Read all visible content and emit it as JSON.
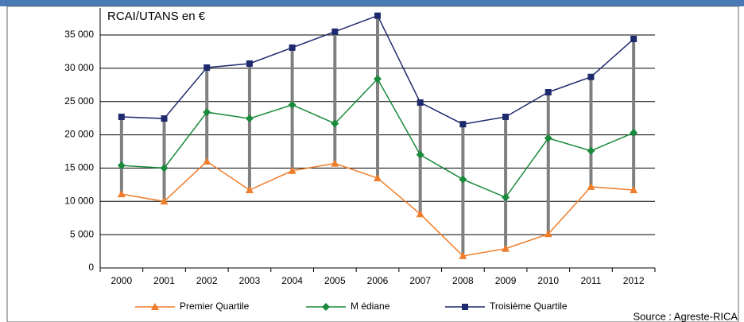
{
  "chart_data": {
    "type": "line",
    "title": "RCAI/UTANS en €",
    "categories": [
      "2000",
      "2001",
      "2002",
      "2003",
      "2004",
      "2005",
      "2006",
      "2007",
      "2008",
      "2009",
      "2010",
      "2011",
      "2012"
    ],
    "series": [
      {
        "name": "Premier Quartile",
        "color": "#f07d2b",
        "marker": "triangle",
        "values": [
          11100,
          10000,
          16000,
          11700,
          14600,
          15700,
          13500,
          8100,
          1800,
          2900,
          5100,
          12200,
          11700
        ]
      },
      {
        "name": "M édiane",
        "color": "#1a8a3c",
        "marker": "diamond",
        "values": [
          15400,
          15000,
          23400,
          22450,
          24500,
          21700,
          28400,
          17000,
          13300,
          10600,
          19500,
          17600,
          20300
        ]
      },
      {
        "name": "Troisième Quartile",
        "color": "#1f2a6e",
        "marker": "square",
        "values": [
          22700,
          22450,
          30100,
          30700,
          33100,
          35500,
          37900,
          24850,
          21600,
          22700,
          26400,
          28700,
          34400
        ]
      }
    ],
    "ylim": [
      0,
      35000
    ],
    "yticks": [
      0,
      {
        "value": 5000,
        "label": "5 000"
      },
      {
        "value": 10000,
        "label": "10 000"
      },
      {
        "value": 15000,
        "label": "15 000"
      },
      {
        "value": 20000,
        "label": "20 000"
      },
      {
        "value": 25000,
        "label": "25 000"
      },
      {
        "value": 30000,
        "label": "30 000"
      },
      {
        "value": 35000,
        "label": "35 000"
      }
    ],
    "grid": true,
    "range_bars": true,
    "source": "Source : Agreste-RICA"
  }
}
